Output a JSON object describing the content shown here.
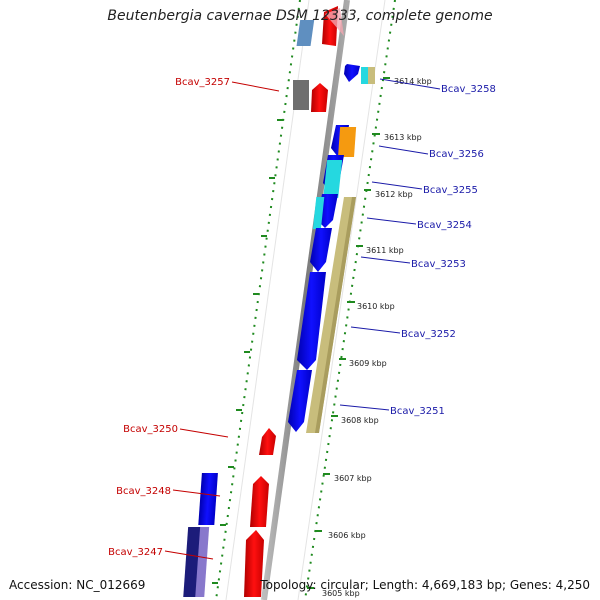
{
  "title": "Beutenbergia cavernae DSM 12333, complete genome",
  "accession": "Accession: NC_012669",
  "topology": "Topology: circular; Length: 4,669,183 bp; Genes: 4,250",
  "kbp_labels": [
    "3614 kbp",
    "3613 kbp",
    "3612 kbp",
    "3611 kbp",
    "3610 kbp",
    "3609 kbp",
    "3608 kbp",
    "3607 kbp",
    "3606 kbp",
    "3605 kbp"
  ],
  "forward_genes": [
    "Bcav_3258",
    "Bcav_3256",
    "Bcav_3255",
    "Bcav_3254",
    "Bcav_3253",
    "Bcav_3252",
    "Bcav_3251"
  ],
  "reverse_genes": [
    "Bcav_3257",
    "Bcav_3250",
    "Bcav_3248",
    "Bcav_3247"
  ],
  "colors": {
    "forward_gene": "#0000ee",
    "reverse_gene": "#ee0000",
    "forward_label": "#1a1aa8",
    "reverse_label": "#c40000",
    "backbone": "#8c8c8c",
    "tick": "#1f8a1f",
    "annotation_khaki": "#c8bd7c",
    "annotation_cyan": "#25d8e0",
    "annotation_orange": "#f59a10",
    "grey_feature": "#6e6e6e",
    "light_blue_feature": "#5f8fc0",
    "navy_feature": "#1c1c7a",
    "purple_feature": "#8878cc"
  }
}
